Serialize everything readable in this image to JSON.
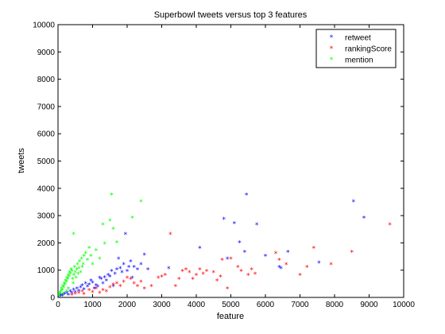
{
  "chart_data": {
    "type": "scatter",
    "title": "Superbowl tweets versus top 3 features",
    "xlabel": "feature",
    "ylabel": "tweets",
    "xlim": [
      0,
      10000
    ],
    "ylim": [
      0,
      10000
    ],
    "xticks": [
      "0",
      "1000",
      "2000",
      "3000",
      "4000",
      "5000",
      "6000",
      "7000",
      "8000",
      "9000",
      "10000"
    ],
    "yticks": [
      "0",
      "1000",
      "2000",
      "3000",
      "4000",
      "5000",
      "6000",
      "7000",
      "8000",
      "9000",
      "10000"
    ],
    "grid": false,
    "legend_position": "top-right",
    "marker": "*",
    "series": [
      {
        "name": "retweet",
        "color": "#0000ff",
        "points": [
          [
            50,
            30
          ],
          [
            80,
            60
          ],
          [
            120,
            40
          ],
          [
            150,
            90
          ],
          [
            200,
            120
          ],
          [
            260,
            150
          ],
          [
            300,
            80
          ],
          [
            350,
            200
          ],
          [
            400,
            140
          ],
          [
            450,
            260
          ],
          [
            500,
            180
          ],
          [
            550,
            300
          ],
          [
            600,
            220
          ],
          [
            650,
            350
          ],
          [
            700,
            420
          ],
          [
            750,
            280
          ],
          [
            800,
            500
          ],
          [
            850,
            380
          ],
          [
            900,
            450
          ],
          [
            950,
            600
          ],
          [
            1000,
            520
          ],
          [
            1050,
            300
          ],
          [
            1100,
            420
          ],
          [
            1150,
            380
          ],
          [
            1200,
            700
          ],
          [
            1250,
            650
          ],
          [
            1300,
            500
          ],
          [
            1350,
            720
          ],
          [
            1400,
            600
          ],
          [
            1450,
            800
          ],
          [
            1500,
            750
          ],
          [
            1550,
            950
          ],
          [
            1600,
            400
          ],
          [
            1650,
            850
          ],
          [
            1700,
            1000
          ],
          [
            1750,
            1400
          ],
          [
            1800,
            1050
          ],
          [
            1850,
            900
          ],
          [
            1900,
            1200
          ],
          [
            1950,
            2300
          ],
          [
            2000,
            950
          ],
          [
            2050,
            1100
          ],
          [
            2100,
            1300
          ],
          [
            2150,
            700
          ],
          [
            2200,
            1100
          ],
          [
            2300,
            1000
          ],
          [
            2400,
            1200
          ],
          [
            2500,
            1550
          ],
          [
            2600,
            1000
          ],
          [
            3200,
            1050
          ],
          [
            4100,
            1800
          ],
          [
            4800,
            2850
          ],
          [
            4900,
            1400
          ],
          [
            5100,
            2700
          ],
          [
            5250,
            2000
          ],
          [
            5400,
            1650
          ],
          [
            5450,
            3750
          ],
          [
            5750,
            2650
          ],
          [
            6000,
            1500
          ],
          [
            6400,
            1100
          ],
          [
            6450,
            1050
          ],
          [
            6650,
            1650
          ],
          [
            7550,
            1250
          ],
          [
            8550,
            3500
          ],
          [
            8850,
            2900
          ]
        ]
      },
      {
        "name": "rankingScore",
        "color": "#ff0000",
        "points": [
          [
            400,
            80
          ],
          [
            500,
            120
          ],
          [
            600,
            150
          ],
          [
            700,
            200
          ],
          [
            750,
            100
          ],
          [
            900,
            250
          ],
          [
            1000,
            180
          ],
          [
            1100,
            300
          ],
          [
            1200,
            150
          ],
          [
            1300,
            250
          ],
          [
            1400,
            200
          ],
          [
            1500,
            350
          ],
          [
            1600,
            450
          ],
          [
            1700,
            500
          ],
          [
            1800,
            400
          ],
          [
            1900,
            550
          ],
          [
            2000,
            700
          ],
          [
            2100,
            650
          ],
          [
            2200,
            500
          ],
          [
            2300,
            400
          ],
          [
            2400,
            550
          ],
          [
            2500,
            300
          ],
          [
            2700,
            400
          ],
          [
            2900,
            700
          ],
          [
            3000,
            750
          ],
          [
            3100,
            800
          ],
          [
            3250,
            2300
          ],
          [
            3400,
            400
          ],
          [
            3500,
            650
          ],
          [
            3600,
            950
          ],
          [
            3700,
            1000
          ],
          [
            3800,
            900
          ],
          [
            3900,
            650
          ],
          [
            4000,
            800
          ],
          [
            4100,
            1000
          ],
          [
            4200,
            850
          ],
          [
            4300,
            950
          ],
          [
            4500,
            900
          ],
          [
            4600,
            600
          ],
          [
            4700,
            750
          ],
          [
            4750,
            1350
          ],
          [
            4900,
            300
          ],
          [
            5000,
            1400
          ],
          [
            5200,
            1100
          ],
          [
            5300,
            950
          ],
          [
            5500,
            800
          ],
          [
            5600,
            1000
          ],
          [
            5700,
            850
          ],
          [
            6300,
            1600
          ],
          [
            6400,
            1350
          ],
          [
            6600,
            1200
          ],
          [
            7000,
            800
          ],
          [
            7200,
            1100
          ],
          [
            7400,
            1800
          ],
          [
            7900,
            1200
          ],
          [
            8500,
            1650
          ],
          [
            9600,
            2650
          ]
        ]
      },
      {
        "name": "mention",
        "color": "#00ff00",
        "points": [
          [
            20,
            50
          ],
          [
            40,
            100
          ],
          [
            60,
            150
          ],
          [
            80,
            200
          ],
          [
            100,
            300
          ],
          [
            120,
            250
          ],
          [
            140,
            400
          ],
          [
            160,
            350
          ],
          [
            180,
            500
          ],
          [
            200,
            450
          ],
          [
            220,
            600
          ],
          [
            240,
            550
          ],
          [
            260,
            700
          ],
          [
            280,
            650
          ],
          [
            300,
            800
          ],
          [
            320,
            750
          ],
          [
            340,
            900
          ],
          [
            360,
            850
          ],
          [
            380,
            1000
          ],
          [
            400,
            950
          ],
          [
            420,
            650
          ],
          [
            440,
            500
          ],
          [
            460,
            800
          ],
          [
            480,
            1100
          ],
          [
            500,
            900
          ],
          [
            520,
            700
          ],
          [
            540,
            1000
          ],
          [
            560,
            1200
          ],
          [
            580,
            850
          ],
          [
            600,
            1050
          ],
          [
            620,
            1300
          ],
          [
            650,
            900
          ],
          [
            680,
            1400
          ],
          [
            700,
            1100
          ],
          [
            730,
            1200
          ],
          [
            750,
            1500
          ],
          [
            800,
            1600
          ],
          [
            850,
            1350
          ],
          [
            900,
            1800
          ],
          [
            950,
            1500
          ],
          [
            1000,
            1200
          ],
          [
            1100,
            1700
          ],
          [
            1200,
            1400
          ],
          [
            1300,
            2650
          ],
          [
            1350,
            1950
          ],
          [
            1500,
            2800
          ],
          [
            1550,
            3750
          ],
          [
            1600,
            2500
          ],
          [
            1700,
            2000
          ],
          [
            2150,
            2900
          ],
          [
            2400,
            3500
          ],
          [
            450,
            2300
          ],
          [
            300,
            300
          ],
          [
            150,
            100
          ],
          [
            250,
            200
          ]
        ]
      }
    ]
  }
}
